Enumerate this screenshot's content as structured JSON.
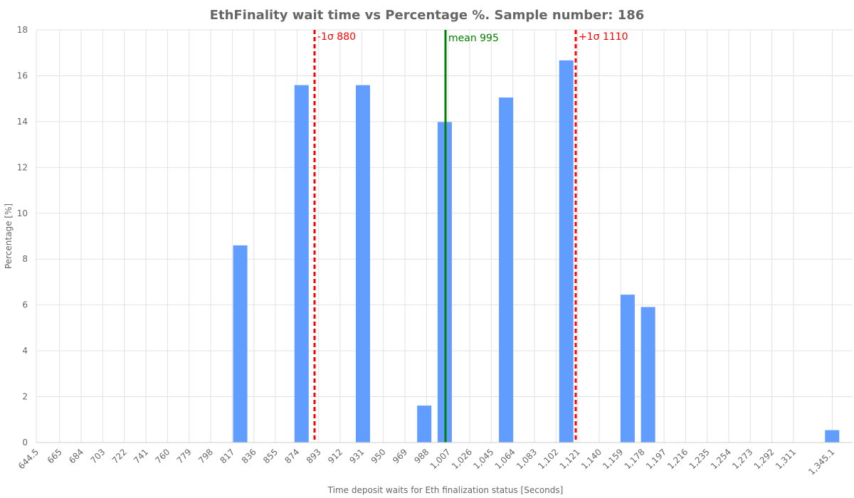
{
  "chart_data": {
    "type": "bar",
    "title": "EthFinality wait time vs Percentage %. Sample number: 186",
    "xlabel": "Time deposit waits for Eth finalization status [Seconds]",
    "ylabel": "Percentage [%]",
    "xlim": [
      644.5,
      1363
    ],
    "ylim": [
      0,
      18
    ],
    "grid": true,
    "x_ticks": [
      644.5,
      665,
      684,
      703,
      722,
      741,
      760,
      779,
      798,
      817,
      836,
      855,
      874,
      893,
      912,
      931,
      950,
      969,
      988,
      1007,
      1026,
      1045,
      1064,
      1083,
      1102,
      1121,
      1140,
      1159,
      1178,
      1197,
      1216,
      1235,
      1254,
      1273,
      1292,
      1311,
      1345.1
    ],
    "x_tick_labels": [
      "644.5",
      "665",
      "684",
      "703",
      "722",
      "741",
      "760",
      "779",
      "798",
      "817",
      "836",
      "855",
      "874",
      "893",
      "912",
      "931",
      "950",
      "969",
      "988",
      "1,007",
      "1,026",
      "1,045",
      "1,064",
      "1,083",
      "1,102",
      "1,121",
      "1,140",
      "1,159",
      "1,178",
      "1,197",
      "1,216",
      "1,235",
      "1,254",
      "1,273",
      "1,292",
      "1,311",
      "1,345.1"
    ],
    "y_ticks": [
      0,
      2,
      4,
      6,
      8,
      10,
      12,
      14,
      16,
      18
    ],
    "bars": {
      "x": [
        824,
        878,
        932,
        986,
        1004,
        1058,
        1111,
        1165,
        1183,
        1345
      ],
      "values": [
        8.6,
        15.59,
        15.59,
        1.61,
        13.98,
        15.05,
        16.67,
        6.45,
        5.91,
        0.54
      ]
    },
    "bar_color": "#619cff",
    "annotations": [
      {
        "label": "-1σ 880",
        "x": 880,
        "color": "#ff0000",
        "style": "dashed"
      },
      {
        "label": "mean 995",
        "x": 995,
        "color": "#008000",
        "style": "solid"
      },
      {
        "label": "+1σ 1110",
        "x": 1110,
        "color": "#ff0000",
        "style": "dashed"
      }
    ]
  }
}
